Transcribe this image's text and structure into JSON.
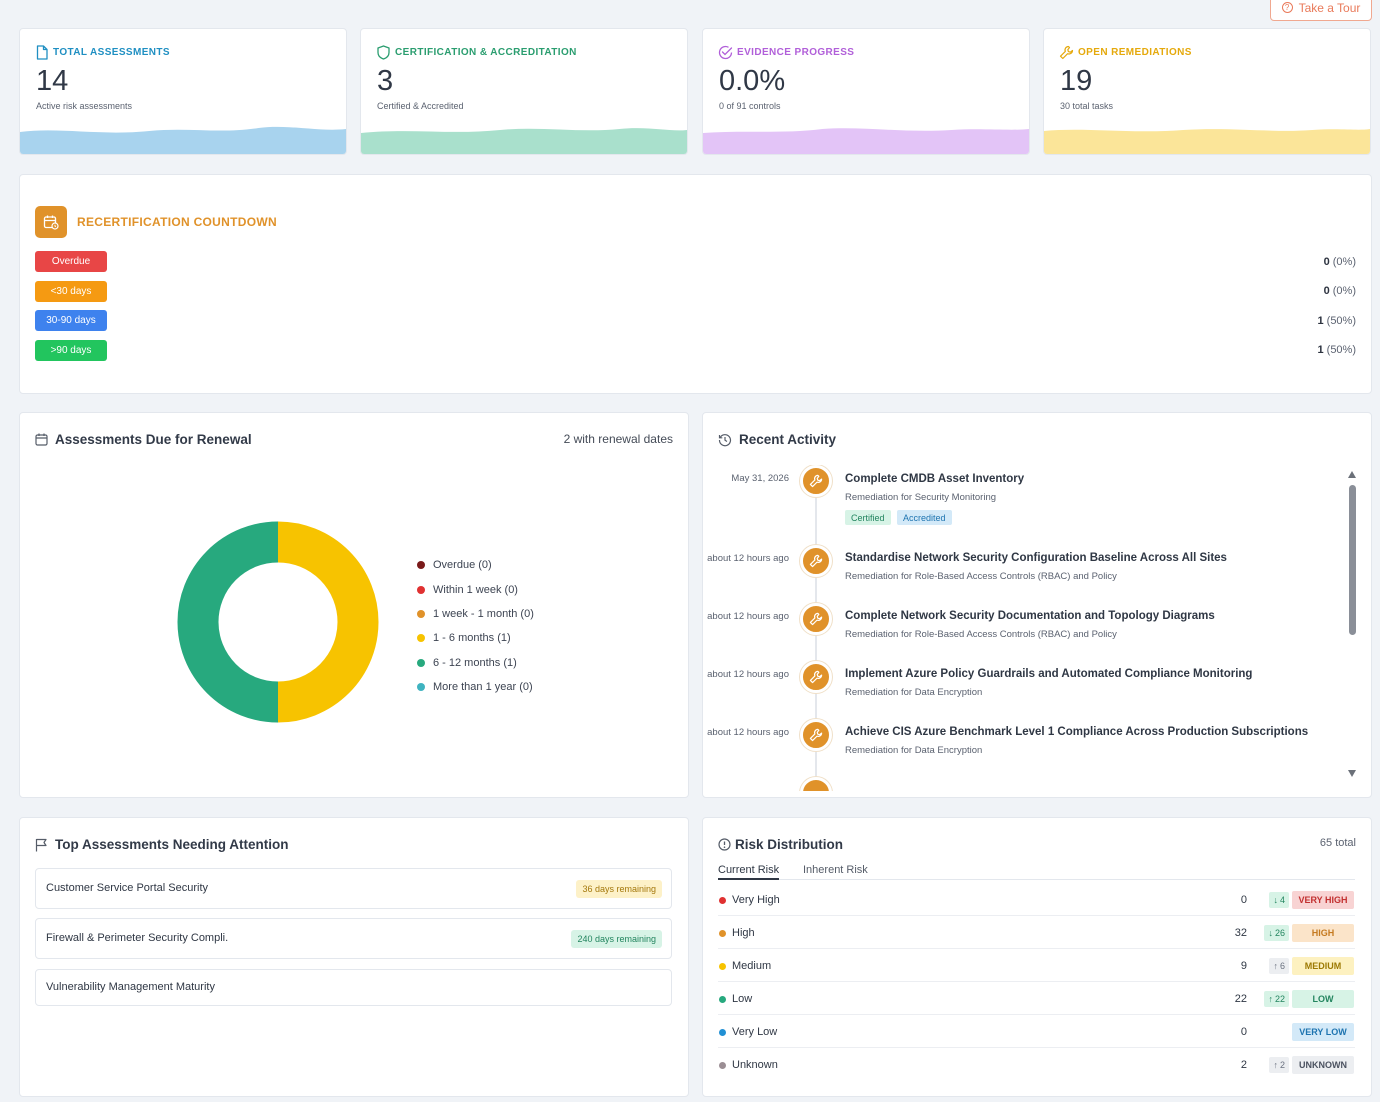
{
  "header": {
    "tour_label": "Take a Tour"
  },
  "stats": [
    {
      "title": "TOTAL ASSESSMENTS",
      "value": "14",
      "sub": "Active risk assessments",
      "color": "#1f8fc2",
      "wave": "#a8d3ee"
    },
    {
      "title": "CERTIFICATION & ACCREDITATION",
      "value": "3",
      "sub": "Certified & Accredited",
      "color": "#2a9d6f",
      "wave": "#a9e0cc"
    },
    {
      "title": "EVIDENCE PROGRESS",
      "value": "0.0%",
      "sub": "0 of 91 controls",
      "color": "#b15fd9",
      "wave": "#e3c4f7"
    },
    {
      "title": "OPEN REMEDIATIONS",
      "value": "19",
      "sub": "30 total tasks",
      "color": "#e5a90c",
      "wave": "#fbe599"
    }
  ],
  "recert": {
    "title": "RECERTIFICATION COUNTDOWN",
    "rows": [
      {
        "label": "Overdue",
        "count": "0",
        "pct": "(0%)",
        "color": "#e84646"
      },
      {
        "label": "<30 days",
        "count": "0",
        "pct": "(0%)",
        "color": "#f59a12"
      },
      {
        "label": "30-90 days",
        "count": "1",
        "pct": "(50%)",
        "color": "#3e82ee"
      },
      {
        "label": ">90 days",
        "count": "1",
        "pct": "(50%)",
        "color": "#22c55e"
      }
    ]
  },
  "renewal": {
    "title": "Assessments Due for Renewal",
    "summary": "2 with renewal dates",
    "legend": [
      {
        "label": "Overdue (0)",
        "color": "#7a1a1a",
        "value": 0
      },
      {
        "label": "Within 1 week (0)",
        "color": "#e03131",
        "value": 0
      },
      {
        "label": "1 week - 1 month (0)",
        "color": "#e0922a",
        "value": 0
      },
      {
        "label": "1 - 6 months (1)",
        "color": "#f7c300",
        "value": 1
      },
      {
        "label": "6 - 12 months (1)",
        "color": "#27a97e",
        "value": 1
      },
      {
        "label": "More than 1 year (0)",
        "color": "#3fb3c0",
        "value": 0
      }
    ]
  },
  "activity": {
    "title": "Recent Activity",
    "items": [
      {
        "date": "May 31, 2026",
        "title": "Complete CMDB Asset Inventory",
        "sub": "Remediation for Security Monitoring",
        "tags": [
          "Certified",
          "Accredited"
        ]
      },
      {
        "date": "about 12 hours ago",
        "title": "Standardise Network Security Configuration Baseline Across All Sites",
        "sub": "Remediation for Role-Based Access Controls (RBAC) and Policy",
        "tags": []
      },
      {
        "date": "about 12 hours ago",
        "title": "Complete Network Security Documentation and Topology Diagrams",
        "sub": "Remediation for Role-Based Access Controls (RBAC) and Policy",
        "tags": []
      },
      {
        "date": "about 12 hours ago",
        "title": "Implement Azure Policy Guardrails and Automated Compliance Monitoring",
        "sub": "Remediation for Data Encryption",
        "tags": []
      },
      {
        "date": "about 12 hours ago",
        "title": "Achieve CIS Azure Benchmark Level 1 Compliance Across Production Subscriptions",
        "sub": "Remediation for Data Encryption",
        "tags": []
      }
    ]
  },
  "attention": {
    "title": "Top Assessments Needing Attention",
    "items": [
      {
        "name": "Customer Service Portal Security",
        "badge": "36 days remaining",
        "bg": "#fdf1c8",
        "fg": "#a4780c"
      },
      {
        "name": "Firewall & Perimeter Security Compli.",
        "badge": "240 days remaining",
        "bg": "#d7f3e6",
        "fg": "#23855f"
      },
      {
        "name": "Vulnerability Management Maturity",
        "badge": "",
        "bg": "",
        "fg": ""
      }
    ]
  },
  "risk": {
    "title": "Risk Distribution",
    "total": "65 total",
    "tabs": [
      "Current Risk",
      "Inherent Risk"
    ],
    "rows": [
      {
        "label": "Very High",
        "count": "0",
        "change": "4",
        "dir": "down",
        "pill": "VERY HIGH",
        "dot": "#e03131",
        "pbg": "#f8d3d3",
        "pfg": "#c23030",
        "cbg": "#d7f3e6",
        "cfg": "#23855f"
      },
      {
        "label": "High",
        "count": "32",
        "change": "26",
        "dir": "down",
        "pill": "HIGH",
        "dot": "#e0922a",
        "pbg": "#fbe4c9",
        "pfg": "#c57a20",
        "cbg": "#d7f3e6",
        "cfg": "#23855f"
      },
      {
        "label": "Medium",
        "count": "9",
        "change": "6",
        "dir": "up",
        "pill": "MEDIUM",
        "dot": "#f7c300",
        "pbg": "#fdf1c0",
        "pfg": "#9d7a04",
        "cbg": "#eceef1",
        "cfg": "#6b7280"
      },
      {
        "label": "Low",
        "count": "22",
        "change": "22",
        "dir": "up",
        "pill": "LOW",
        "dot": "#27a97e",
        "pbg": "#d7f3e6",
        "pfg": "#23855f",
        "cbg": "#d7f3e6",
        "cfg": "#23855f"
      },
      {
        "label": "Very Low",
        "count": "0",
        "change": "",
        "dir": "",
        "pill": "VERY LOW",
        "dot": "#2190d4",
        "pbg": "#d3e9f8",
        "pfg": "#1e74b0",
        "cbg": "",
        "cfg": ""
      },
      {
        "label": "Unknown",
        "count": "2",
        "change": "2",
        "dir": "up",
        "pill": "UNKNOWN",
        "dot": "#9b8e94",
        "pbg": "#eceef1",
        "pfg": "#4b5260",
        "cbg": "#eceef1",
        "cfg": "#6b7280"
      }
    ]
  }
}
